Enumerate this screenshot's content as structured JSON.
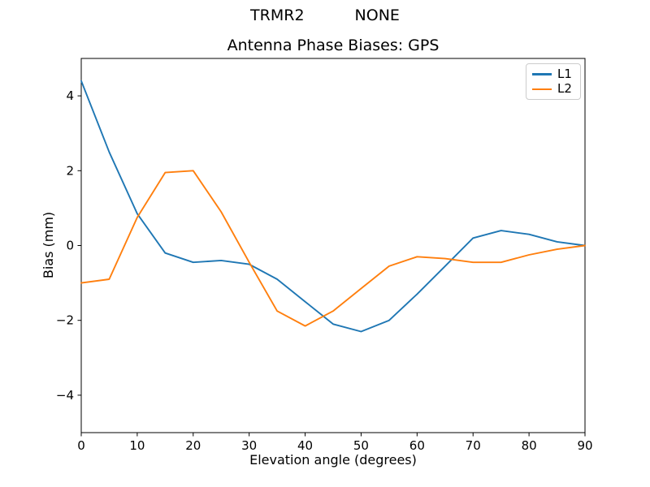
{
  "header": {
    "suptitle_left": "TRMR2",
    "suptitle_right": "NONE"
  },
  "chart_data": {
    "type": "line",
    "title": "Antenna Phase Biases: GPS",
    "xlabel": "Elevation angle (degrees)",
    "ylabel": "Bias (mm)",
    "xlim": [
      0,
      90
    ],
    "ylim": [
      -5,
      5
    ],
    "xticks": [
      0,
      10,
      20,
      30,
      40,
      50,
      60,
      70,
      80,
      90
    ],
    "yticks": [
      -4,
      -2,
      0,
      2,
      4
    ],
    "grid": false,
    "legend_position": "upper right",
    "x": [
      0,
      5,
      10,
      15,
      20,
      25,
      30,
      35,
      40,
      45,
      50,
      55,
      60,
      65,
      70,
      75,
      80,
      85,
      90
    ],
    "series": [
      {
        "name": "L1",
        "color": "#1f77b4",
        "values": [
          4.4,
          2.5,
          0.85,
          -0.2,
          -0.45,
          -0.4,
          -0.5,
          -0.9,
          -1.5,
          -2.1,
          -2.3,
          -2.0,
          -1.3,
          -0.55,
          0.2,
          0.4,
          0.3,
          0.1,
          0.0
        ]
      },
      {
        "name": "L2",
        "color": "#ff7f0e",
        "values": [
          -1.0,
          -0.9,
          0.75,
          1.95,
          2.0,
          0.9,
          -0.45,
          -1.75,
          -2.15,
          -1.75,
          -1.15,
          -0.55,
          -0.3,
          -0.35,
          -0.45,
          -0.45,
          -0.25,
          -0.1,
          0.0
        ]
      }
    ],
    "axis_color": "#000000",
    "background": "#ffffff"
  }
}
